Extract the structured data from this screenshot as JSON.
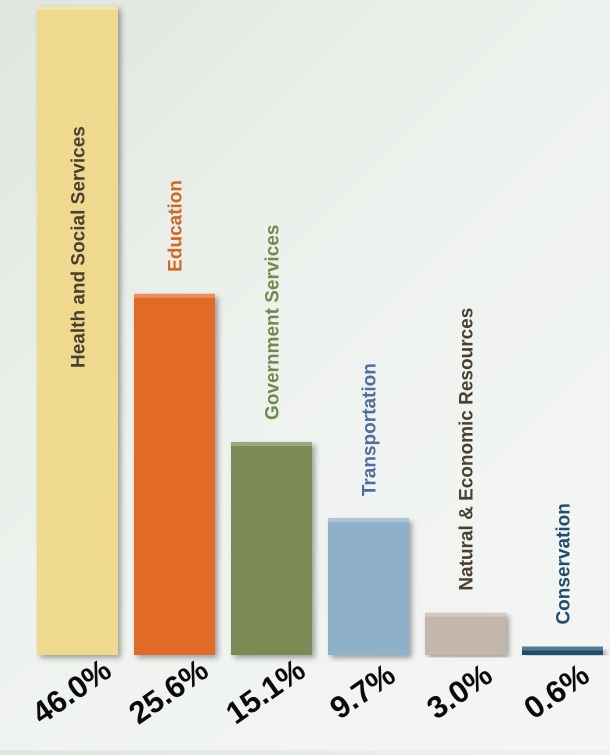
{
  "chart_data": {
    "type": "bar",
    "categories": [
      "Health and Social Services",
      "Education",
      "Government Services",
      "Transportation",
      "Natural & Economic Resources",
      "Conservation"
    ],
    "values": [
      46.0,
      25.6,
      15.1,
      9.7,
      3.0,
      0.6
    ],
    "value_labels": [
      "46.0%",
      "25.6%",
      "15.1%",
      "9.7%",
      "3.0%",
      "0.6%"
    ],
    "colors": [
      "#efd98f",
      "#e06a25",
      "#7d8a57",
      "#8fb0c9",
      "#c3b7ab",
      "#1f4e6d"
    ],
    "label_colors": [
      "#4a4030",
      "#d4671f",
      "#6f8a4a",
      "#4e6da0",
      "#4a4030",
      "#1f4e6d"
    ],
    "title": "",
    "xlabel": "",
    "ylabel": "",
    "ylim": [
      0,
      46.0
    ],
    "grid": false,
    "legend": "none"
  }
}
